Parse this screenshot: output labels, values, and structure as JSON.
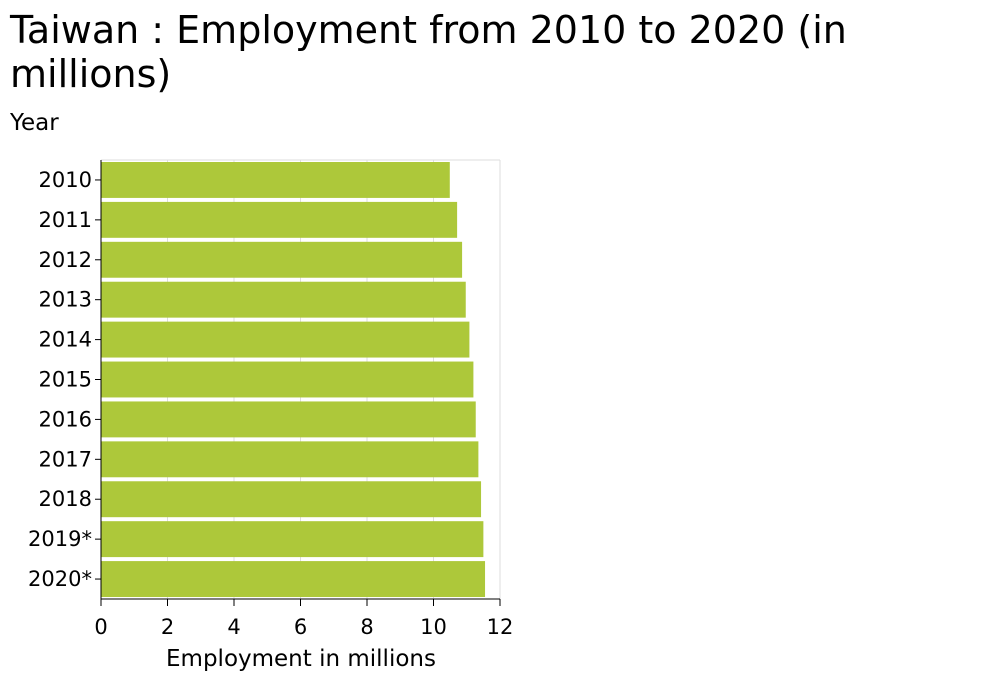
{
  "chart_data": {
    "type": "bar",
    "orientation": "horizontal",
    "title": "Taiwan : Employment from 2010 to 2020 (in millions)",
    "xlabel": "Employment in millions",
    "ylabel": "Year",
    "categories": [
      "2010",
      "2011",
      "2012",
      "2013",
      "2014",
      "2015",
      "2016",
      "2017",
      "2018",
      "2019*",
      "2020*"
    ],
    "values": [
      10.49,
      10.71,
      10.86,
      10.97,
      11.08,
      11.2,
      11.27,
      11.35,
      11.43,
      11.5,
      11.55
    ],
    "xlim": [
      0,
      12
    ],
    "xticks": [
      "0",
      "2",
      "4",
      "6",
      "8",
      "10",
      "12"
    ],
    "grid": true,
    "legend": "none",
    "bar_color": "#adc83a",
    "grid_color": "#dddddd"
  }
}
